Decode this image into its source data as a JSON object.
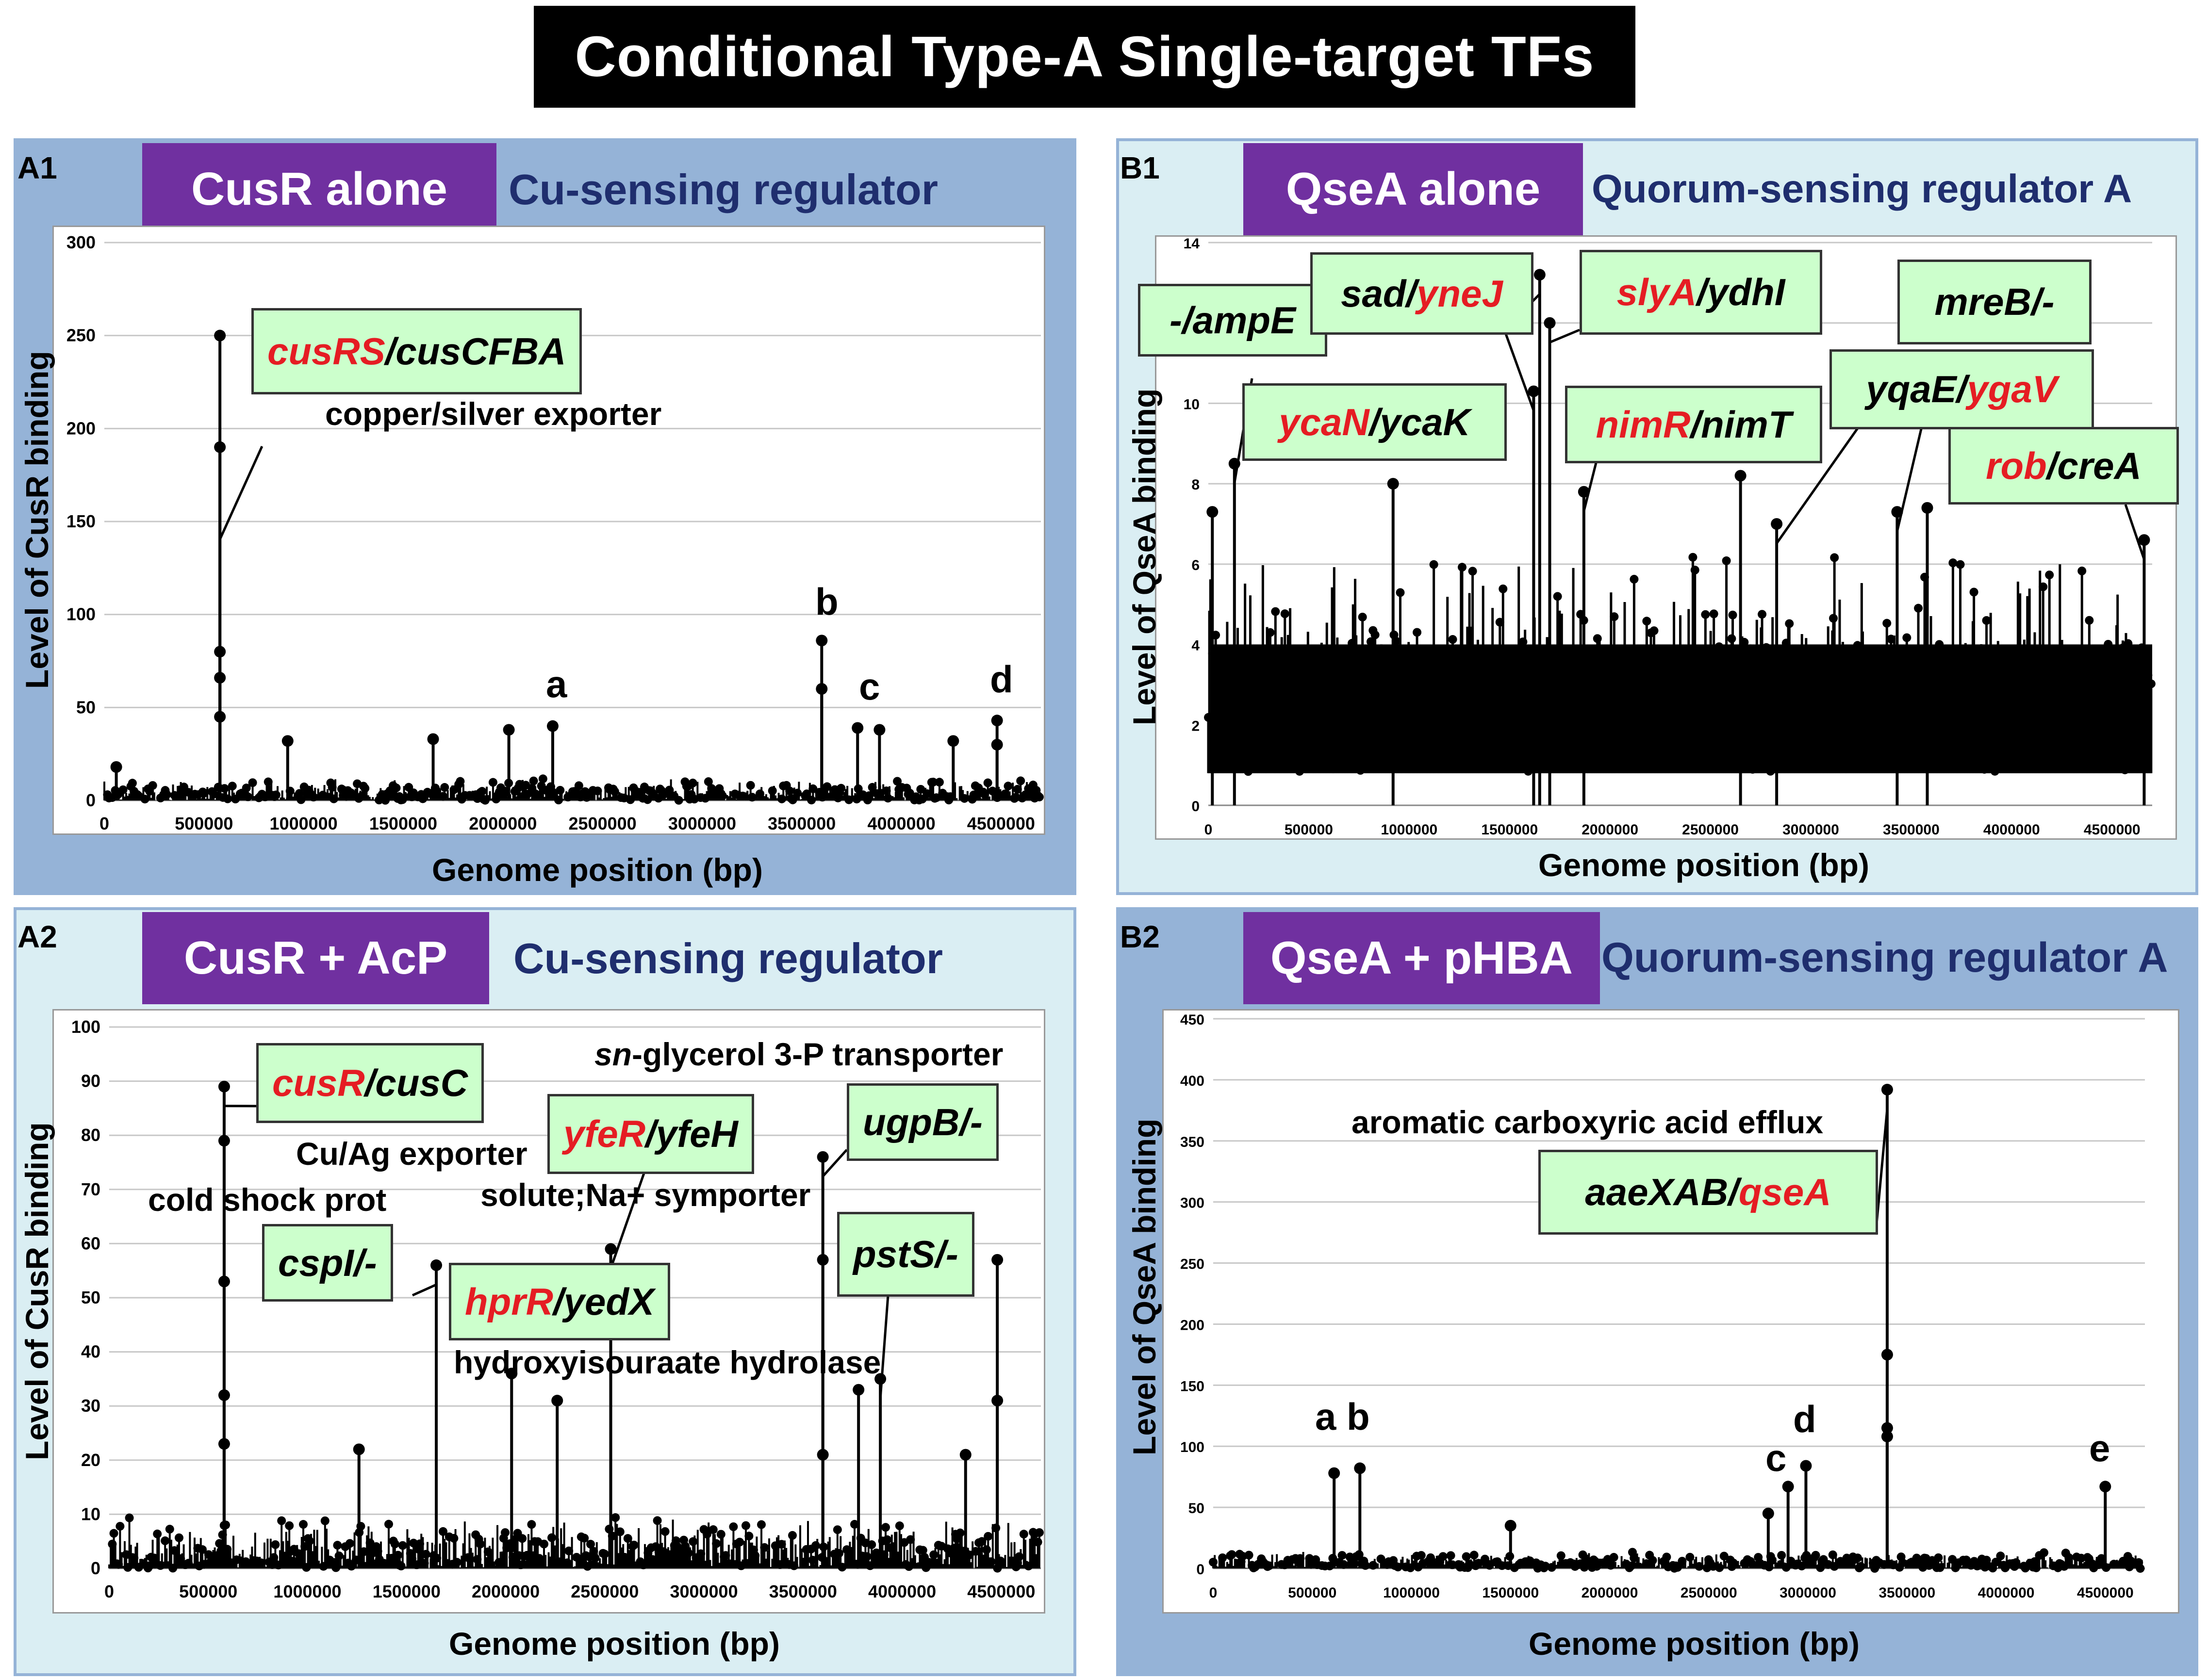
{
  "title": "Conditional Type-A Single-target TFs",
  "colors": {
    "badge": "#7030a0",
    "subtitle": "#1f2e6e",
    "gene_box": "#ccffcc",
    "red_gene": "#e51c23",
    "panel_dark": "#95b3d7",
    "panel_light": "#daeef3"
  },
  "panels": {
    "A1": {
      "id": "A1",
      "tf": "CusR alone",
      "desc": "Cu-sensing regulator",
      "ylabel": "Level of CusR binding",
      "xlabel": "Genome position (bp)",
      "genes": {
        "g1_red": "cusRS",
        "g1_black": "/cusCFBA"
      },
      "annos": {
        "a1": "copper/silver exporter"
      },
      "letters": {
        "a": "a",
        "b": "b",
        "c": "c",
        "d": "d"
      }
    },
    "A2": {
      "id": "A2",
      "tf": "CusR + AcP",
      "desc": "Cu-sensing regulator",
      "ylabel": "Level of CusR binding",
      "xlabel": "Genome position (bp)",
      "genes": {
        "g1_red": "cusR",
        "g1_black": "/cusC",
        "g2": "cspI/-",
        "g3_red": "yfeR",
        "g3_black": "/yfeH",
        "g4_red": "hprR",
        "g4_black": "/yedX",
        "g5": "ugpB/-",
        "g6": "pstS/-"
      },
      "annos": {
        "sn_italic": "sn",
        "sn_rest": "-glycerol 3-P transporter",
        "cuag": "Cu/Ag exporter",
        "cold": "cold shock prot",
        "solute": "solute;Na+ symporter",
        "hydroxy": "hydroxyisouraate hydrolase"
      }
    },
    "B1": {
      "id": "B1",
      "tf": "QseA alone",
      "desc": "Quorum-sensing regulator A",
      "ylabel": "Level of QseA binding",
      "xlabel": "Genome position (bp)",
      "genes": {
        "ampE": "-/ampE",
        "sad_black": "sad/",
        "sad_red": "yneJ",
        "slyA_red": "slyA",
        "slyA_black": "/ydhI",
        "mreB": "mreB/-",
        "ycaN_red": "ycaN",
        "ycaN_black": "/ycaK",
        "nimR_red": "nimR",
        "nimR_black": "/nimT",
        "yqaE_black": "yqaE/",
        "yqaE_red": "ygaV",
        "rob_red": "rob",
        "rob_black": "/creA"
      }
    },
    "B2": {
      "id": "B2",
      "tf": "QseA + pHBA",
      "desc": "Quorum-sensing regulator A",
      "ylabel": "Level of QseA binding",
      "xlabel": "Genome position (bp)",
      "genes": {
        "aae_black": "aaeXAB/",
        "aae_red": "qseA"
      },
      "annos": {
        "aromatic": "aromatic carboxyric acid efflux"
      },
      "letters": {
        "ab": "a b",
        "c": "c",
        "d": "d",
        "e": "e"
      }
    }
  },
  "chart_data": [
    {
      "panel": "A1",
      "type": "scatter",
      "title": "CusR alone",
      "xlabel": "Genome position (bp)",
      "ylabel": "Level of CusR binding",
      "xlim": [
        0,
        4700000
      ],
      "ylim": [
        0,
        300
      ],
      "xticks": [
        "0",
        "500000",
        "1000000",
        "1500000",
        "2000000",
        "2500000",
        "3000000",
        "3500000",
        "4000000",
        "4500000"
      ],
      "yticks": [
        "0",
        "50",
        "100",
        "150",
        "200",
        "250",
        "300"
      ],
      "peaks": [
        [
          60000,
          18
        ],
        [
          580000,
          250
        ],
        [
          580000,
          190
        ],
        [
          580000,
          80
        ],
        [
          580000,
          66
        ],
        [
          580000,
          45
        ],
        [
          920000,
          32
        ],
        [
          1650000,
          33
        ],
        [
          2030000,
          38
        ],
        [
          2250000,
          40
        ],
        [
          3600000,
          86
        ],
        [
          3600000,
          60
        ],
        [
          3780000,
          39
        ],
        [
          3890000,
          38
        ],
        [
          4260000,
          32
        ],
        [
          4480000,
          43
        ],
        [
          4480000,
          30
        ]
      ],
      "noise_max": 12
    },
    {
      "panel": "A2",
      "type": "scatter",
      "title": "CusR + AcP",
      "xlabel": "Genome position (bp)",
      "ylabel": "Level of CusR binding",
      "xlim": [
        0,
        4700000
      ],
      "ylim": [
        0,
        100
      ],
      "xticks": [
        "0",
        "500000",
        "1000000",
        "1500000",
        "2000000",
        "2500000",
        "3000000",
        "3500000",
        "4000000",
        "4500000"
      ],
      "yticks": [
        "0",
        "10",
        "20",
        "30",
        "40",
        "50",
        "60",
        "70",
        "80",
        "90",
        "100"
      ],
      "peaks": [
        [
          580000,
          89
        ],
        [
          580000,
          79
        ],
        [
          580000,
          53
        ],
        [
          580000,
          32
        ],
        [
          580000,
          23
        ],
        [
          1260000,
          22
        ],
        [
          1650000,
          56
        ],
        [
          2030000,
          36
        ],
        [
          2260000,
          31
        ],
        [
          2530000,
          59
        ],
        [
          2530000,
          47
        ],
        [
          3600000,
          76
        ],
        [
          3600000,
          57
        ],
        [
          3600000,
          21
        ],
        [
          3780000,
          33
        ],
        [
          3890000,
          35
        ],
        [
          4480000,
          57
        ],
        [
          4480000,
          31
        ],
        [
          4320000,
          21
        ]
      ],
      "noise_max": 10
    },
    {
      "panel": "B1",
      "type": "scatter",
      "title": "QseA alone",
      "xlabel": "Genome position (bp)",
      "ylabel": "Level of QseA binding",
      "xlim": [
        0,
        4700000
      ],
      "ylim": [
        0,
        14
      ],
      "xticks": [
        "0",
        "500000",
        "1000000",
        "1500000",
        "2000000",
        "2500000",
        "3000000",
        "3500000",
        "4000000",
        "4500000"
      ],
      "yticks": [
        "0",
        "2",
        "4",
        "6",
        "8",
        "10",
        "12",
        "14"
      ],
      "peaks": [
        [
          20000,
          7.3
        ],
        [
          130000,
          8.5
        ],
        [
          920000,
          8.0
        ],
        [
          1620000,
          10.3
        ],
        [
          1650000,
          13.2
        ],
        [
          1700000,
          12.0
        ],
        [
          1870000,
          7.8
        ],
        [
          2650000,
          8.2
        ],
        [
          2830000,
          7.0
        ],
        [
          3430000,
          7.3
        ],
        [
          3580000,
          7.4
        ],
        [
          4660000,
          6.6
        ]
      ],
      "noise_max": 4.2
    },
    {
      "panel": "B2",
      "type": "scatter",
      "title": "QseA + pHBA",
      "xlabel": "Genome position (bp)",
      "ylabel": "Level of QseA binding",
      "xlim": [
        0,
        4700000
      ],
      "ylim": [
        0,
        450
      ],
      "xticks": [
        "0",
        "500000",
        "1000000",
        "1500000",
        "2000000",
        "2500000",
        "3000000",
        "3500000",
        "4000000",
        "4500000"
      ],
      "yticks": [
        "0",
        "50",
        "100",
        "150",
        "200",
        "250",
        "300",
        "350",
        "400",
        "450"
      ],
      "peaks": [
        [
          610000,
          78
        ],
        [
          740000,
          82
        ],
        [
          2900000,
          67
        ],
        [
          2990000,
          84
        ],
        [
          3400000,
          392
        ],
        [
          3400000,
          175
        ],
        [
          3400000,
          115
        ],
        [
          3400000,
          108
        ],
        [
          4500000,
          67
        ],
        [
          2800000,
          45
        ],
        [
          1500000,
          35
        ]
      ],
      "noise_max": 14
    }
  ]
}
